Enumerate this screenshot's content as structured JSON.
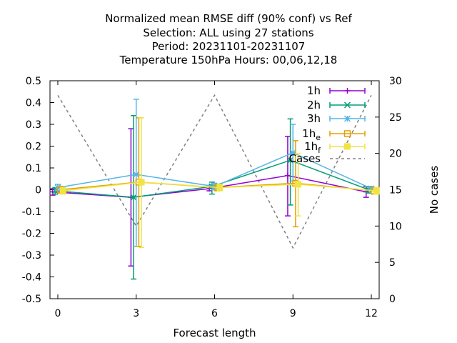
{
  "chart_data": {
    "type": "line",
    "title_lines": [
      "Normalized mean RMSE diff (90% conf) vs Ref",
      "Selection: ALL using    27 stations",
      "Period: 20231101-20231107",
      "Temperature 150hPa   Hours:  00,06,12,18"
    ],
    "xlabel": "Forecast length",
    "ylabel": "",
    "y2label": "No cases",
    "xlim": [
      -0.3,
      12.3
    ],
    "ylim": [
      -0.5,
      0.5
    ],
    "y2lim": [
      0,
      30
    ],
    "x_ticks": [
      0,
      3,
      6,
      9,
      12
    ],
    "x_tick_labels": [
      "0",
      "3",
      "6",
      "9",
      "12"
    ],
    "y_ticks": [
      -0.5,
      -0.4,
      -0.3,
      -0.2,
      -0.1,
      0,
      0.1,
      0.2,
      0.3,
      0.4,
      0.5
    ],
    "y_tick_labels": [
      "-0.5",
      "-0.4",
      "-0.3",
      "-0.2",
      "-0.1",
      "0",
      "0.1",
      "0.2",
      "0.3",
      "0.4",
      "0.5"
    ],
    "y2_ticks": [
      0,
      5,
      10,
      15,
      20,
      25,
      30
    ],
    "y2_tick_labels": [
      "0",
      "5",
      "10",
      "15",
      "20",
      "25",
      "30"
    ],
    "grid": false,
    "legend_position": "top-right",
    "series": [
      {
        "name": "1h",
        "name_sub": "",
        "color": "#9400d3",
        "marker": "plus",
        "x": [
          -0.2,
          2.8,
          5.8,
          8.8,
          11.8
        ],
        "y": [
          -0.01,
          -0.035,
          0.005,
          0.065,
          -0.01
        ],
        "err_low": [
          -0.025,
          -0.35,
          -0.005,
          -0.12,
          -0.035
        ],
        "err_high": [
          0.005,
          0.28,
          0.02,
          0.245,
          0.015
        ]
      },
      {
        "name": "2h",
        "name_sub": "",
        "color": "#009e73",
        "marker": "cross",
        "x": [
          -0.1,
          2.9,
          5.9,
          8.9,
          11.9
        ],
        "y": [
          -0.005,
          -0.035,
          0.015,
          0.135,
          0.0
        ],
        "err_low": [
          -0.02,
          -0.41,
          -0.02,
          -0.07,
          -0.015
        ],
        "err_high": [
          0.01,
          0.34,
          0.035,
          0.325,
          0.015
        ]
      },
      {
        "name": "3h",
        "name_sub": "",
        "color": "#56b4e9",
        "marker": "star",
        "x": [
          0.0,
          3.0,
          6.0,
          9.0,
          12.0
        ],
        "y": [
          0.01,
          0.07,
          0.015,
          0.17,
          0.005
        ],
        "err_low": [
          -0.005,
          -0.26,
          0.0,
          0.04,
          -0.005
        ],
        "err_high": [
          0.025,
          0.415,
          0.03,
          0.3,
          0.015
        ]
      },
      {
        "name": "1h",
        "name_sub": "e",
        "color": "#e69f00",
        "marker": "square",
        "x": [
          0.1,
          3.1,
          6.1,
          9.1,
          12.1
        ],
        "y": [
          0.0,
          0.035,
          0.01,
          0.03,
          -0.005
        ],
        "err_low": [
          -0.015,
          -0.26,
          -0.005,
          -0.17,
          -0.02
        ],
        "err_high": [
          0.015,
          0.33,
          0.025,
          0.225,
          0.01
        ]
      },
      {
        "name": "1h",
        "name_sub": "f",
        "color": "#f0e442",
        "marker": "filled-square",
        "x": [
          0.2,
          3.2,
          6.2,
          9.2,
          12.2
        ],
        "y": [
          -0.005,
          0.035,
          0.01,
          0.025,
          -0.005
        ],
        "err_low": [
          -0.02,
          -0.265,
          -0.005,
          -0.12,
          -0.02
        ],
        "err_high": [
          0.01,
          0.33,
          0.025,
          0.165,
          0.01
        ]
      }
    ],
    "cases": {
      "name": "Cases",
      "color": "#808080",
      "axis": "y2",
      "x": [
        0,
        3,
        6,
        9,
        12
      ],
      "y": [
        28,
        10,
        28,
        7,
        28
      ]
    }
  }
}
